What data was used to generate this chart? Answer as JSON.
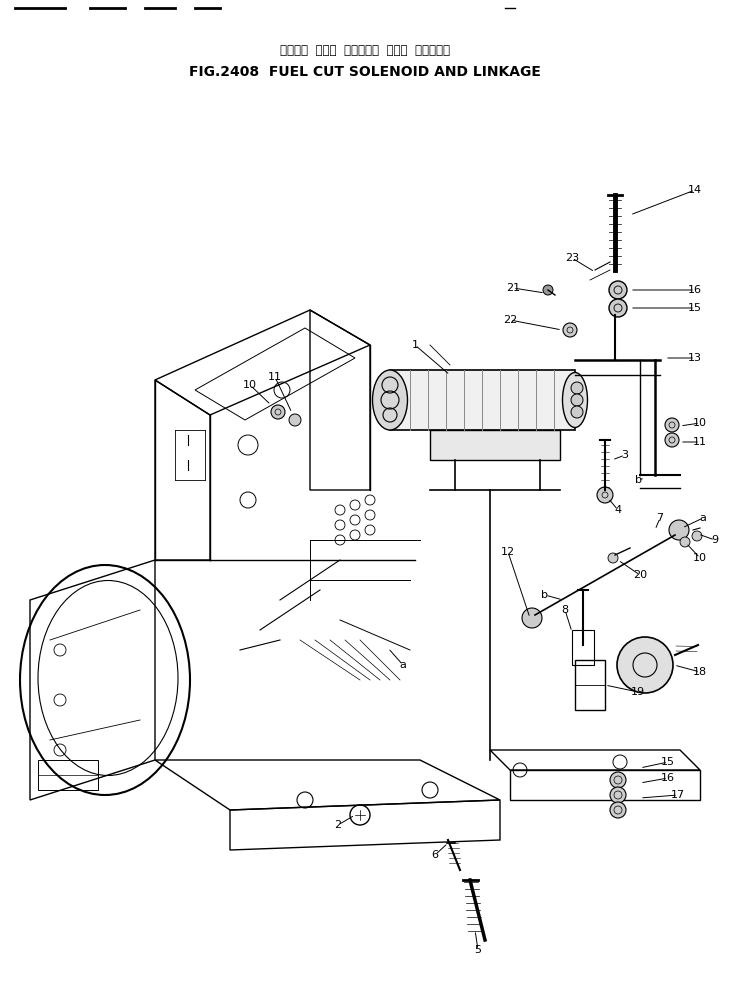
{
  "title_japanese": "フェエル  カット  ソレノイド  および  リンケージ",
  "title_english": "FIG.2408  FUEL CUT SOLENOID AND LINKAGE",
  "bg_color": "#ffffff",
  "line_color": "#000000",
  "figsize": [
    7.3,
    9.92
  ],
  "dpi": 100,
  "xlim": [
    0,
    730
  ],
  "ylim": [
    0,
    992
  ]
}
